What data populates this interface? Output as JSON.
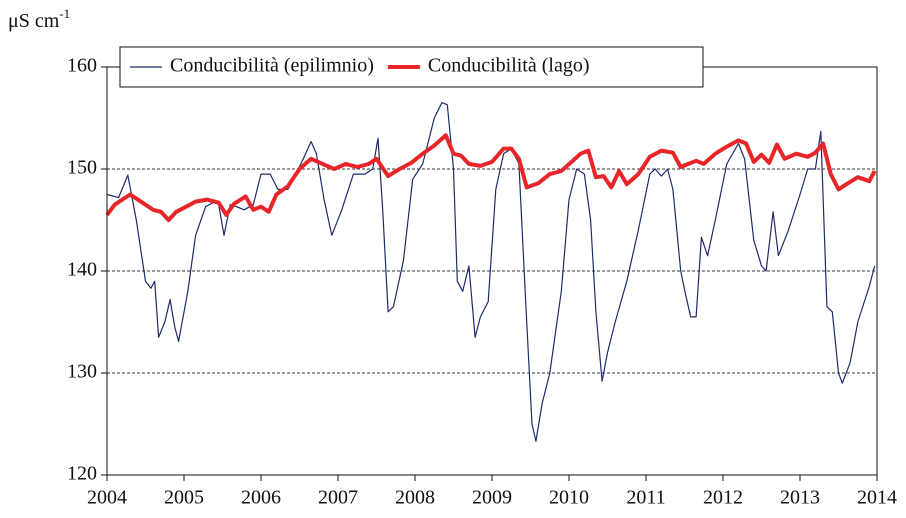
{
  "chart_data": {
    "type": "line",
    "y_label": "μS cm",
    "y_label_sup": "-1",
    "xlim": [
      2004,
      2014
    ],
    "xticks": [
      2004,
      2005,
      2006,
      2007,
      2008,
      2009,
      2010,
      2011,
      2012,
      2013,
      2014
    ],
    "ylim": [
      120,
      160
    ],
    "yticks": [
      120,
      130,
      140,
      150,
      160
    ],
    "grid": true,
    "series": [
      {
        "name": "Conducibilità (epilimnio)",
        "color": "#1f2a6b",
        "width": 1.2,
        "x": [
          2004.0,
          2004.15,
          2004.27,
          2004.38,
          2004.5,
          2004.57,
          2004.62,
          2004.67,
          2004.75,
          2004.82,
          2004.88,
          2004.93,
          2005.05,
          2005.15,
          2005.28,
          2005.4,
          2005.45,
          2005.52,
          2005.6,
          2005.68,
          2005.78,
          2005.9,
          2006.0,
          2006.12,
          2006.22,
          2006.35,
          2006.45,
          2006.55,
          2006.65,
          2006.72,
          2006.82,
          2006.92,
          2007.05,
          2007.2,
          2007.35,
          2007.45,
          2007.52,
          2007.58,
          2007.65,
          2007.72,
          2007.85,
          2007.97,
          2008.1,
          2008.25,
          2008.35,
          2008.42,
          2008.5,
          2008.55,
          2008.62,
          2008.7,
          2008.78,
          2008.85,
          2008.95,
          2009.05,
          2009.15,
          2009.25,
          2009.35,
          2009.45,
          2009.52,
          2009.57,
          2009.65,
          2009.75,
          2009.9,
          2010.0,
          2010.1,
          2010.2,
          2010.28,
          2010.35,
          2010.43,
          2010.5,
          2010.6,
          2010.75,
          2010.9,
          2011.05,
          2011.12,
          2011.2,
          2011.28,
          2011.35,
          2011.45,
          2011.52,
          2011.58,
          2011.65,
          2011.72,
          2011.8,
          2011.9,
          2012.05,
          2012.2,
          2012.28,
          2012.4,
          2012.5,
          2012.56,
          2012.65,
          2012.72,
          2012.85,
          2013.0,
          2013.1,
          2013.2,
          2013.27,
          2013.35,
          2013.42,
          2013.5,
          2013.55,
          2013.65,
          2013.75,
          2013.9,
          2013.97
        ],
        "values": [
          147.5,
          147.2,
          149.4,
          145,
          139,
          138.3,
          139,
          133.5,
          135,
          137.2,
          134.5,
          133.1,
          138,
          143.5,
          146.3,
          146.8,
          146.5,
          143.5,
          146.5,
          146.3,
          146,
          146.5,
          149.5,
          149.5,
          148,
          148,
          149.5,
          151,
          152.7,
          151.5,
          147,
          143.5,
          146,
          149.5,
          149.5,
          150,
          153,
          146,
          136,
          136.5,
          141,
          149,
          150.5,
          155,
          156.5,
          156.3,
          150,
          139,
          138,
          140.5,
          133.5,
          135.5,
          137,
          148,
          151.5,
          152,
          150.5,
          135,
          125,
          123.3,
          127,
          130,
          138,
          147,
          150,
          149.5,
          145,
          136,
          129.2,
          132,
          135,
          139,
          144,
          149.5,
          150,
          149.3,
          150,
          148,
          140,
          137.5,
          135.5,
          135.5,
          143.3,
          141.5,
          145,
          150.5,
          152.5,
          151,
          143,
          140.5,
          140,
          145.8,
          141.5,
          144,
          147.5,
          150,
          150,
          153.7,
          136.5,
          136,
          130,
          129,
          131,
          135,
          138.5,
          140.5
        ]
      },
      {
        "name": "Conducibilità (lago)",
        "color": "#e8262a",
        "width": 4,
        "x": [
          2004.0,
          2004.1,
          2004.2,
          2004.3,
          2004.4,
          2004.5,
          2004.6,
          2004.7,
          2004.8,
          2004.9,
          2005.0,
          2005.15,
          2005.3,
          2005.45,
          2005.55,
          2005.65,
          2005.8,
          2005.9,
          2006.0,
          2006.1,
          2006.2,
          2006.35,
          2006.5,
          2006.65,
          2006.8,
          2006.95,
          2007.1,
          2007.25,
          2007.4,
          2007.5,
          2007.65,
          2007.8,
          2007.95,
          2008.1,
          2008.25,
          2008.4,
          2008.5,
          2008.6,
          2008.7,
          2008.85,
          2009.0,
          2009.15,
          2009.25,
          2009.35,
          2009.45,
          2009.6,
          2009.75,
          2009.9,
          2010.05,
          2010.15,
          2010.25,
          2010.35,
          2010.45,
          2010.55,
          2010.65,
          2010.75,
          2010.9,
          2011.05,
          2011.2,
          2011.35,
          2011.45,
          2011.55,
          2011.65,
          2011.75,
          2011.9,
          2012.05,
          2012.2,
          2012.3,
          2012.4,
          2012.5,
          2012.6,
          2012.7,
          2012.8,
          2012.95,
          2013.1,
          2013.2,
          2013.3,
          2013.4,
          2013.5,
          2013.6,
          2013.75,
          2013.9,
          2013.97
        ],
        "values": [
          145.5,
          146.5,
          147,
          147.5,
          147,
          146.5,
          146,
          145.8,
          145,
          145.8,
          146.2,
          146.8,
          147,
          146.7,
          145.5,
          146.6,
          147.3,
          146,
          146.3,
          145.8,
          147.5,
          148.3,
          150,
          151,
          150.5,
          150,
          150.5,
          150.2,
          150.5,
          151,
          149.3,
          150,
          150.6,
          151.5,
          152.3,
          153.3,
          151.5,
          151.3,
          150.5,
          150.3,
          150.7,
          152,
          152,
          151,
          148.2,
          148.6,
          149.5,
          149.8,
          150.8,
          151.5,
          151.8,
          149.2,
          149.3,
          148.2,
          149.8,
          148.5,
          149.5,
          151.2,
          151.8,
          151.6,
          150.2,
          150.5,
          150.8,
          150.5,
          151.5,
          152.2,
          152.8,
          152.5,
          150.7,
          151.4,
          150.6,
          152.4,
          151,
          151.5,
          151.2,
          151.6,
          152.5,
          149.5,
          148,
          148.5,
          149.2,
          148.8,
          149.8
        ]
      }
    ]
  }
}
